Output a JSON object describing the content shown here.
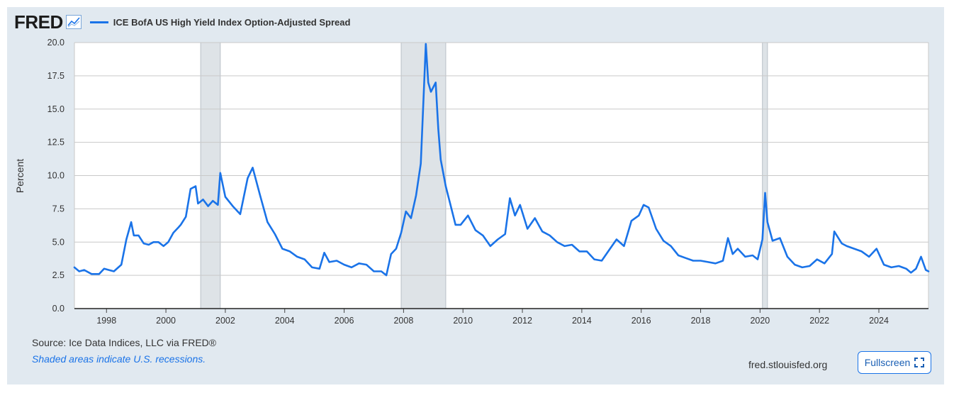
{
  "header": {
    "logo": "FRED",
    "series_legend": "ICE BofA US High Yield Index Option-Adjusted Spread"
  },
  "footer": {
    "source": "Source: Ice Data Indices, LLC via FRED®",
    "note": "Shaded areas indicate U.S. recessions.",
    "site": "fred.stlouisfed.org",
    "fullscreen_label": "Fullscreen"
  },
  "colors": {
    "line": "#1a73e8",
    "recession": "#dee3e7",
    "panel": "#e1e9f0"
  },
  "chart_data": {
    "type": "line",
    "ylabel": "Percent",
    "ylim": [
      0,
      20
    ],
    "xlim": [
      1996.92,
      2025.67
    ],
    "y_ticks": [
      0.0,
      2.5,
      5.0,
      7.5,
      10.0,
      12.5,
      15.0,
      17.5,
      20.0
    ],
    "y_tick_labels": [
      "0.0",
      "2.5",
      "5.0",
      "7.5",
      "10.0",
      "12.5",
      "15.0",
      "17.5",
      "20.0"
    ],
    "x_ticks": [
      1998,
      2000,
      2002,
      2004,
      2006,
      2008,
      2010,
      2012,
      2014,
      2016,
      2018,
      2020,
      2022,
      2024
    ],
    "grid": true,
    "recessions": [
      [
        2001.17,
        2001.83
      ],
      [
        2007.92,
        2009.42
      ],
      [
        2020.08,
        2020.25
      ]
    ],
    "series": [
      {
        "name": "ICE BofA US High Yield Index Option-Adjusted Spread",
        "x": [
          1996.92,
          1997.08,
          1997.25,
          1997.5,
          1997.75,
          1997.92,
          1998.08,
          1998.25,
          1998.5,
          1998.67,
          1998.83,
          1998.92,
          1999.08,
          1999.25,
          1999.42,
          1999.58,
          1999.75,
          1999.92,
          2000.08,
          2000.25,
          2000.42,
          2000.5,
          2000.67,
          2000.83,
          2001.0,
          2001.08,
          2001.25,
          2001.42,
          2001.58,
          2001.75,
          2001.83,
          2002.0,
          2002.25,
          2002.5,
          2002.75,
          2002.92,
          2003.17,
          2003.42,
          2003.67,
          2003.92,
          2004.17,
          2004.42,
          2004.67,
          2004.92,
          2005.17,
          2005.33,
          2005.5,
          2005.75,
          2006.0,
          2006.25,
          2006.5,
          2006.75,
          2007.0,
          2007.25,
          2007.42,
          2007.58,
          2007.75,
          2007.92,
          2008.08,
          2008.25,
          2008.42,
          2008.58,
          2008.75,
          2008.83,
          2008.92,
          2009.08,
          2009.17,
          2009.25,
          2009.42,
          2009.58,
          2009.75,
          2009.92,
          2010.17,
          2010.42,
          2010.67,
          2010.92,
          2011.17,
          2011.42,
          2011.58,
          2011.75,
          2011.92,
          2012.17,
          2012.42,
          2012.67,
          2012.92,
          2013.17,
          2013.42,
          2013.67,
          2013.92,
          2014.17,
          2014.42,
          2014.67,
          2014.92,
          2015.17,
          2015.42,
          2015.67,
          2015.92,
          2016.08,
          2016.25,
          2016.5,
          2016.75,
          2017.0,
          2017.25,
          2017.5,
          2017.75,
          2018.0,
          2018.25,
          2018.5,
          2018.75,
          2018.92,
          2019.08,
          2019.25,
          2019.5,
          2019.75,
          2019.92,
          2020.08,
          2020.17,
          2020.25,
          2020.42,
          2020.67,
          2020.92,
          2021.17,
          2021.42,
          2021.67,
          2021.92,
          2022.17,
          2022.42,
          2022.5,
          2022.75,
          2022.92,
          2023.17,
          2023.42,
          2023.67,
          2023.92,
          2024.17,
          2024.42,
          2024.67,
          2024.92,
          2025.08,
          2025.25,
          2025.42,
          2025.58,
          2025.67
        ],
        "values": [
          3.1,
          2.8,
          2.9,
          2.6,
          2.6,
          3.0,
          2.9,
          2.8,
          3.3,
          5.2,
          6.5,
          5.5,
          5.5,
          4.9,
          4.8,
          5.0,
          5.0,
          4.7,
          5.0,
          5.7,
          6.1,
          6.3,
          6.9,
          9.0,
          9.2,
          7.9,
          8.2,
          7.7,
          8.1,
          7.8,
          10.2,
          8.4,
          7.7,
          7.1,
          9.8,
          10.6,
          8.5,
          6.5,
          5.6,
          4.5,
          4.3,
          3.9,
          3.7,
          3.1,
          3.0,
          4.2,
          3.5,
          3.6,
          3.3,
          3.1,
          3.4,
          3.3,
          2.8,
          2.8,
          2.5,
          4.1,
          4.5,
          5.7,
          7.3,
          6.8,
          8.5,
          10.9,
          19.9,
          17.0,
          16.3,
          17.0,
          13.5,
          11.2,
          9.2,
          7.8,
          6.3,
          6.3,
          7.0,
          5.9,
          5.5,
          4.7,
          5.2,
          5.6,
          8.3,
          7.0,
          7.8,
          6.0,
          6.8,
          5.8,
          5.5,
          5.0,
          4.7,
          4.8,
          4.3,
          4.3,
          3.7,
          3.6,
          4.4,
          5.2,
          4.7,
          6.6,
          7.0,
          7.8,
          7.6,
          6.0,
          5.1,
          4.7,
          4.0,
          3.8,
          3.6,
          3.6,
          3.5,
          3.4,
          3.6,
          5.3,
          4.1,
          4.5,
          3.9,
          4.0,
          3.7,
          5.2,
          8.7,
          6.5,
          5.1,
          5.3,
          3.9,
          3.3,
          3.1,
          3.2,
          3.7,
          3.4,
          4.1,
          5.8,
          4.9,
          4.7,
          4.5,
          4.3,
          3.9,
          4.5,
          3.3,
          3.1,
          3.2,
          3.0,
          2.7,
          3.0,
          3.9,
          2.9,
          2.8
        ]
      }
    ]
  }
}
